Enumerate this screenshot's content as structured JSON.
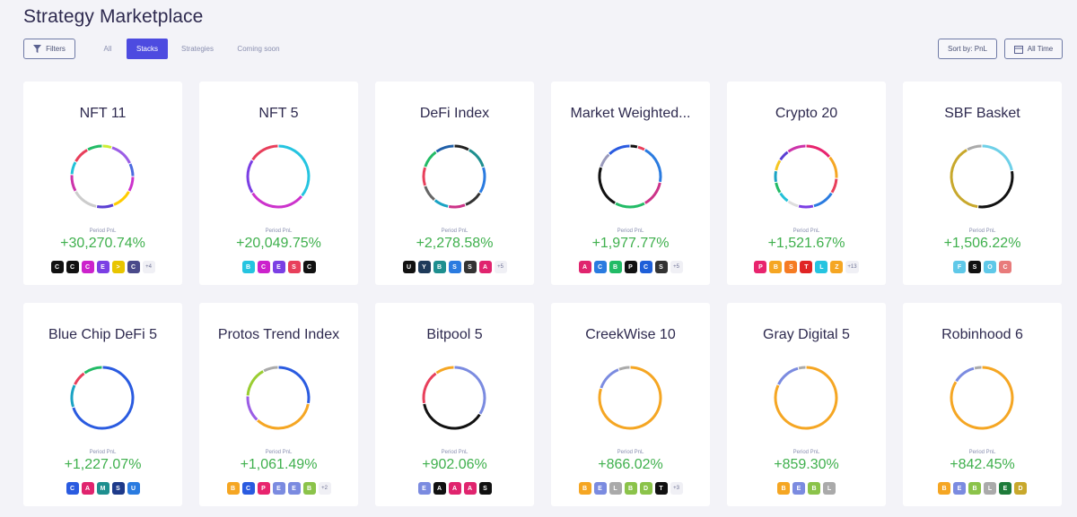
{
  "page": {
    "title": "Strategy Marketplace"
  },
  "toolbar": {
    "filters_label": "Filters",
    "tabs": [
      {
        "label": "All",
        "active": false
      },
      {
        "label": "Stacks",
        "active": true
      },
      {
        "label": "Strategies",
        "active": false
      },
      {
        "label": "Coming soon",
        "active": false
      }
    ],
    "sort_label": "Sort by: PnL",
    "time_label": "All Time"
  },
  "colors": {
    "accent": "#4d4be0",
    "positive": "#3fb04d"
  },
  "pnl_label": "Period PnL",
  "cards": [
    {
      "name": "NFT 11",
      "pnl": "+30,270.74%",
      "more": "+4",
      "ring": [
        [
          "#ccee33",
          5
        ],
        [
          "#9b5de5",
          13
        ],
        [
          "#4d6be0",
          7
        ],
        [
          "#cc33cc",
          8
        ],
        [
          "#ffcc00",
          11
        ],
        [
          "#5b3fd3",
          9
        ],
        [
          "#cccccc",
          14
        ],
        [
          "#cc33aa",
          9
        ],
        [
          "#22c1d8",
          7
        ],
        [
          "#e83f5b",
          9
        ],
        [
          "#22bb66",
          8
        ]
      ],
      "tokens": [
        [
          "#111111",
          "C"
        ],
        [
          "#111111",
          "C"
        ],
        [
          "#cc22cc",
          "C"
        ],
        [
          "#7b3fe4",
          "E"
        ],
        [
          "#e8c500",
          "&gt;"
        ],
        [
          "#4a4a8a",
          "C"
        ]
      ]
    },
    {
      "name": "NFT 5",
      "pnl": "+20,049.75%",
      "more": "",
      "ring": [
        [
          "#25c4e0",
          36
        ],
        [
          "#cc33cc",
          30
        ],
        [
          "#7b3fe4",
          18
        ],
        [
          "#e83f5b",
          16
        ]
      ],
      "tokens": [
        [
          "#25c4e0",
          "B"
        ],
        [
          "#cc22cc",
          "C"
        ],
        [
          "#7b3fe4",
          "E"
        ],
        [
          "#e83f5b",
          "S"
        ],
        [
          "#111111",
          "C"
        ]
      ]
    },
    {
      "name": "DeFi Index",
      "pnl": "+2,278.58%",
      "more": "+5",
      "ring": [
        [
          "#222222",
          8
        ],
        [
          "#1e8f8f",
          12
        ],
        [
          "#2a7be0",
          14
        ],
        [
          "#333333",
          10
        ],
        [
          "#cc3388",
          9
        ],
        [
          "#1aa3c4",
          8
        ],
        [
          "#666666",
          9
        ],
        [
          "#e83f5b",
          10
        ],
        [
          "#22bb66",
          10
        ],
        [
          "#1f5fa8",
          10
        ]
      ],
      "tokens": [
        [
          "#111111",
          "U"
        ],
        [
          "#1e3a5a",
          "Y"
        ],
        [
          "#1e8f8f",
          "B"
        ],
        [
          "#2a7be0",
          "S"
        ],
        [
          "#333333",
          "S"
        ],
        [
          "#e0246e",
          "A"
        ]
      ]
    },
    {
      "name": "Market Weighted...",
      "pnl": "+1,977.77%",
      "more": "+5",
      "ring": [
        [
          "#111111",
          4
        ],
        [
          "#e83f5b",
          4
        ],
        [
          "#2a7be0",
          20
        ],
        [
          "#cc3388",
          14
        ],
        [
          "#22bb66",
          16
        ],
        [
          "#111111",
          22
        ],
        [
          "#9999bb",
          8
        ],
        [
          "#2a5be0",
          12
        ]
      ],
      "tokens": [
        [
          "#e0246e",
          "A"
        ],
        [
          "#2a7be0",
          "C"
        ],
        [
          "#22bb66",
          "B"
        ],
        [
          "#111111",
          "P"
        ],
        [
          "#1e5fd8",
          "C"
        ],
        [
          "#333333",
          "S"
        ]
      ]
    },
    {
      "name": "Crypto 20",
      "pnl": "+1,521.67%",
      "more": "+13",
      "ring": [
        [
          "#e8246e",
          14
        ],
        [
          "#f5a623",
          12
        ],
        [
          "#e83f5b",
          8
        ],
        [
          "#2a7be0",
          12
        ],
        [
          "#7b3fe4",
          8
        ],
        [
          "#dddddd",
          6
        ],
        [
          "#22c1d8",
          6
        ],
        [
          "#22bb66",
          6
        ],
        [
          "#1aa3c4",
          6
        ],
        [
          "#f5c623",
          6
        ],
        [
          "#5b3fd3",
          6
        ],
        [
          "#cc33aa",
          10
        ]
      ],
      "tokens": [
        [
          "#e8246e",
          "P"
        ],
        [
          "#f5a623",
          "B"
        ],
        [
          "#f57b23",
          "S"
        ],
        [
          "#e02424",
          "T"
        ],
        [
          "#25c4e0",
          "L"
        ],
        [
          "#f5a623",
          "Z"
        ]
      ]
    },
    {
      "name": "SBF Basket",
      "pnl": "+1,506.22%",
      "more": "",
      "ring": [
        [
          "#6ed0e8",
          22
        ],
        [
          "#111111",
          30
        ],
        [
          "#c8a82c",
          40
        ],
        [
          "#aaaaaa",
          8
        ]
      ],
      "tokens": [
        [
          "#5fc8e8",
          "F"
        ],
        [
          "#111111",
          "S"
        ],
        [
          "#5fc8e8",
          "O"
        ],
        [
          "#e87b7b",
          "C"
        ]
      ]
    },
    {
      "name": "Blue Chip DeFi 5",
      "pnl": "+1,227.07%",
      "more": "",
      "ring": [
        [
          "#2a5be0",
          70
        ],
        [
          "#1aa3c4",
          12
        ],
        [
          "#e83f5b",
          8
        ],
        [
          "#22bb66",
          10
        ]
      ],
      "tokens": [
        [
          "#2a5be0",
          "C"
        ],
        [
          "#e0246e",
          "A"
        ],
        [
          "#1e8f8f",
          "M"
        ],
        [
          "#1e3a8a",
          "S"
        ],
        [
          "#2a7be0",
          "U"
        ]
      ]
    },
    {
      "name": "Protos Trend Index",
      "pnl": "+1,061.49%",
      "more": "+2",
      "ring": [
        [
          "#2a5be0",
          28
        ],
        [
          "#f5a623",
          34
        ],
        [
          "#9b5de5",
          14
        ],
        [
          "#9acd32",
          16
        ],
        [
          "#aaaaaa",
          8
        ]
      ],
      "tokens": [
        [
          "#f5a623",
          "B"
        ],
        [
          "#2a5be0",
          "C"
        ],
        [
          "#e8246e",
          "P"
        ],
        [
          "#7b8be0",
          "E"
        ],
        [
          "#7b8be0",
          "E"
        ],
        [
          "#8bc34a",
          "B"
        ]
      ]
    },
    {
      "name": "Bitpool 5",
      "pnl": "+902.06%",
      "more": "",
      "ring": [
        [
          "#7b8be0",
          34
        ],
        [
          "#111111",
          38
        ],
        [
          "#e83f5b",
          18
        ],
        [
          "#f5a623",
          10
        ]
      ],
      "tokens": [
        [
          "#7b8be0",
          "E"
        ],
        [
          "#111111",
          "A"
        ],
        [
          "#e0246e",
          "A"
        ],
        [
          "#e0246e",
          "A"
        ],
        [
          "#111111",
          "S"
        ]
      ]
    },
    {
      "name": "CreekWise 10",
      "pnl": "+866.02%",
      "more": "+3",
      "ring": [
        [
          "#f5a623",
          80
        ],
        [
          "#7b8be0",
          14
        ],
        [
          "#aaaaaa",
          6
        ]
      ],
      "tokens": [
        [
          "#f5a623",
          "B"
        ],
        [
          "#7b8be0",
          "E"
        ],
        [
          "#aaaaaa",
          "L"
        ],
        [
          "#8bc34a",
          "B"
        ],
        [
          "#8bc34a",
          "D"
        ],
        [
          "#111111",
          "T"
        ]
      ]
    },
    {
      "name": "Gray Digital 5",
      "pnl": "+859.30%",
      "more": "",
      "ring": [
        [
          "#f5a623",
          82
        ],
        [
          "#7b8be0",
          14
        ],
        [
          "#aaaaaa",
          4
        ]
      ],
      "tokens": [
        [
          "#f5a623",
          "B"
        ],
        [
          "#7b8be0",
          "E"
        ],
        [
          "#8bc34a",
          "B"
        ],
        [
          "#aaaaaa",
          "L"
        ]
      ]
    },
    {
      "name": "Robinhood 6",
      "pnl": "+842.45%",
      "more": "",
      "ring": [
        [
          "#f5a623",
          84
        ],
        [
          "#7b8be0",
          12
        ],
        [
          "#aaaaaa",
          4
        ]
      ],
      "tokens": [
        [
          "#f5a623",
          "B"
        ],
        [
          "#7b8be0",
          "E"
        ],
        [
          "#8bc34a",
          "B"
        ],
        [
          "#aaaaaa",
          "L"
        ],
        [
          "#1e7b3a",
          "E"
        ],
        [
          "#c8a82c",
          "D"
        ]
      ]
    }
  ]
}
